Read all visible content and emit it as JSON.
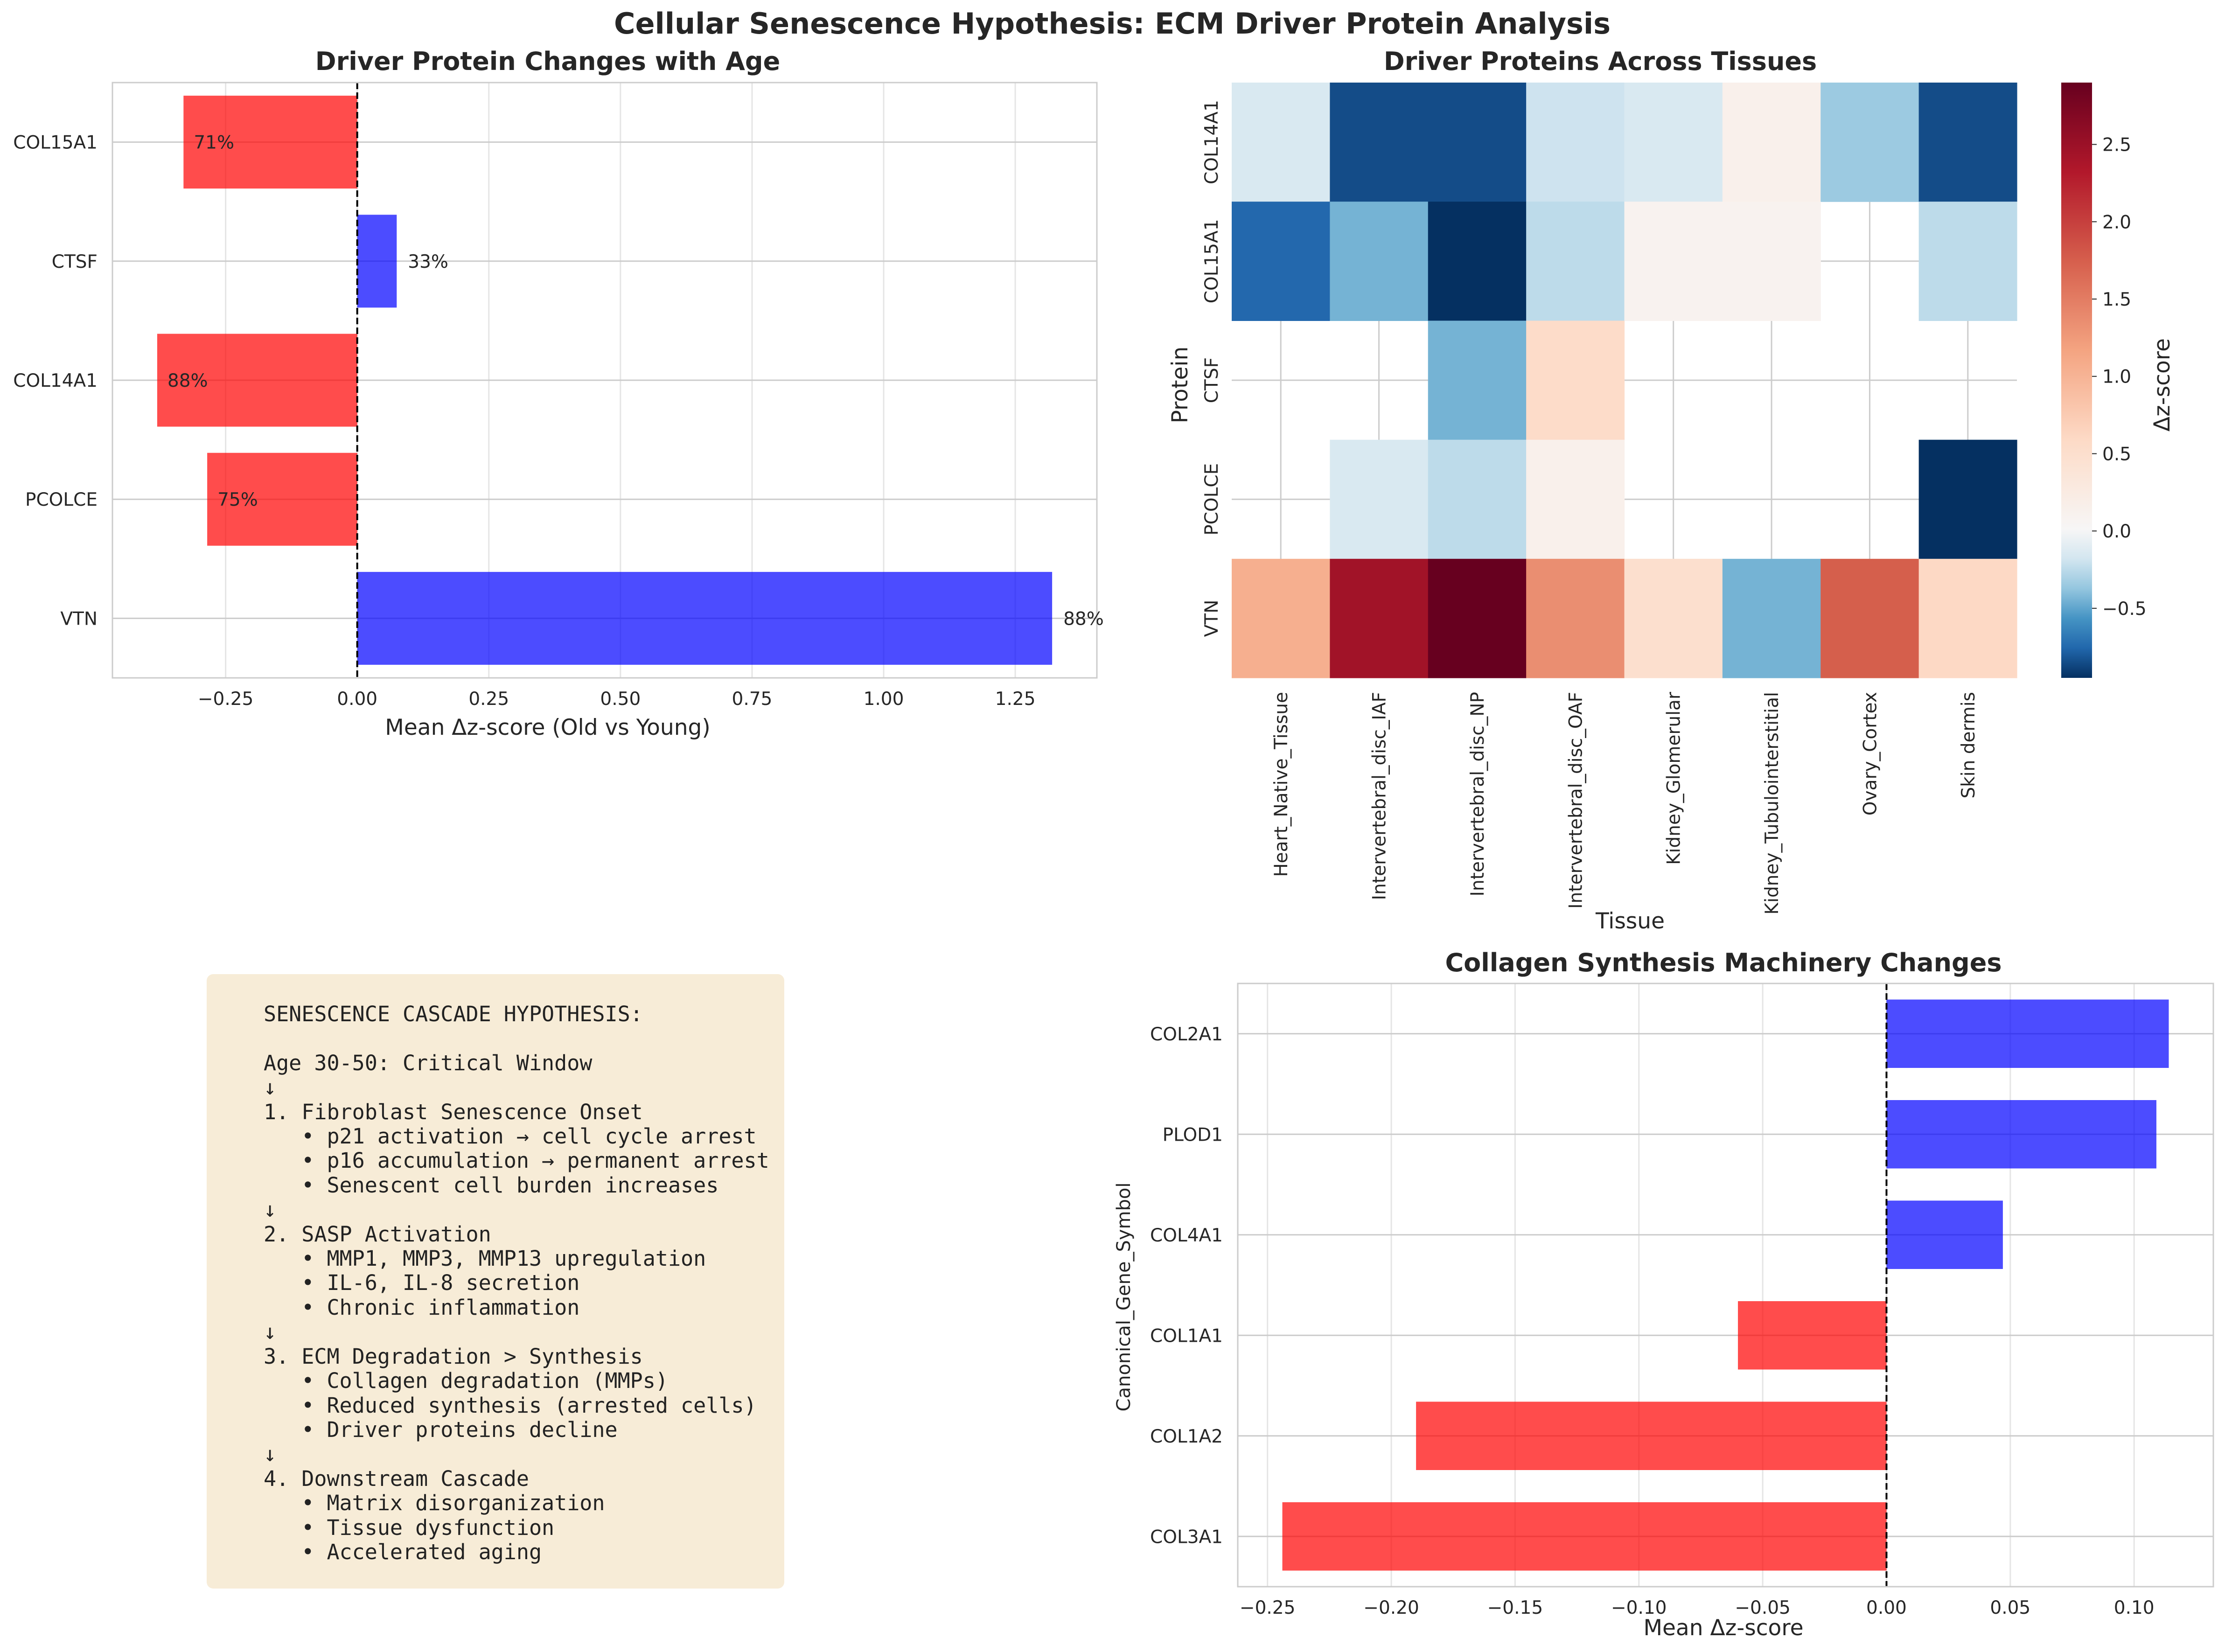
{
  "suptitle": "Cellular Senescence Hypothesis: ECM Driver Protein Analysis",
  "colors": {
    "increase": "#0000ff",
    "decrease": "#ff0000",
    "grid": "#e5e5e5",
    "text": "#262626",
    "text_box_bg": "#f7ecd7"
  },
  "chart_data": [
    {
      "type": "bar",
      "orientation": "horizontal",
      "title": "Driver Protein Changes with Age",
      "xlabel": "Mean Δz-score (Old vs Young)",
      "ylabel": "",
      "categories": [
        "COL15A1",
        "CTSF",
        "COL14A1",
        "PCOLCE",
        "VTN"
      ],
      "values": [
        -0.33,
        0.075,
        -0.38,
        -0.285,
        1.32
      ],
      "data_labels": [
        "71%",
        "33%",
        "88%",
        "75%",
        "88%"
      ],
      "xlim": [
        -0.465,
        1.405
      ],
      "xticks": [
        -0.25,
        0.0,
        0.25,
        0.5,
        0.75,
        1.0,
        1.25
      ],
      "xtick_labels": [
        "−0.25",
        "0.00",
        "0.25",
        "0.50",
        "0.75",
        "1.00",
        "1.25"
      ],
      "grid": true
    },
    {
      "type": "heatmap",
      "title": "Driver Proteins Across Tissues",
      "xlabel": "Tissue",
      "ylabel": "Protein",
      "x_categories": [
        "Heart_Native_Tissue",
        "Intervertebral_disc_IAF",
        "Intervertebral_disc_NP",
        "Intervertebral_disc_OAF",
        "Kidney_Glomerular",
        "Kidney_Tubulointerstitial",
        "Ovary_Cortex",
        "Skin dermis"
      ],
      "y_categories": [
        "COL14A1",
        "COL15A1",
        "CTSF",
        "PCOLCE",
        "VTN"
      ],
      "values": [
        [
          -0.15,
          -0.85,
          -0.85,
          -0.2,
          -0.15,
          0.15,
          -0.35,
          -0.85
        ],
        [
          -0.75,
          -0.45,
          -0.95,
          -0.25,
          0.1,
          0.1,
          null,
          -0.25
        ],
        [
          null,
          null,
          -0.45,
          0.55,
          null,
          null,
          null,
          null
        ],
        [
          null,
          -0.15,
          -0.25,
          0.15,
          null,
          null,
          null,
          -0.95
        ],
        [
          1.05,
          2.45,
          2.9,
          1.35,
          0.5,
          -0.45,
          1.75,
          0.6
        ]
      ],
      "colorbar_label": "Δz-score",
      "colorbar_range": [
        -0.95,
        2.9
      ],
      "colorbar_ticks": [
        -0.5,
        0.0,
        0.5,
        1.0,
        1.5,
        2.0,
        2.5
      ],
      "colorbar_tick_labels": [
        "−0.5",
        "0.0",
        "0.5",
        "1.0",
        "1.5",
        "2.0",
        "2.5"
      ],
      "colormap": "RdBu_r centered at 0"
    },
    {
      "type": "bar",
      "orientation": "horizontal",
      "title": "Collagen Synthesis Machinery Changes",
      "xlabel": "Mean Δz-score",
      "ylabel": "Canonical_Gene_Symbol",
      "categories": [
        "COL2A1",
        "PLOD1",
        "COL4A1",
        "COL1A1",
        "COL1A2",
        "COL3A1"
      ],
      "values": [
        0.114,
        0.109,
        0.047,
        -0.06,
        -0.19,
        -0.244
      ],
      "xlim": [
        -0.262,
        0.132
      ],
      "xticks": [
        -0.25,
        -0.2,
        -0.15,
        -0.1,
        -0.05,
        0.0,
        0.05,
        0.1
      ],
      "xtick_labels": [
        "−0.25",
        "−0.20",
        "−0.15",
        "−0.10",
        "−0.05",
        "0.00",
        "0.05",
        "0.10"
      ],
      "grid": true
    }
  ],
  "hypothesis_text": "SENESCENCE CASCADE HYPOTHESIS:\n\nAge 30-50: Critical Window\n↓\n1. Fibroblast Senescence Onset\n   • p21 activation → cell cycle arrest\n   • p16 accumulation → permanent arrest\n   • Senescent cell burden increases\n↓\n2. SASP Activation\n   • MMP1, MMP3, MMP13 upregulation\n   • IL-6, IL-8 secretion\n   • Chronic inflammation\n↓\n3. ECM Degradation > Synthesis\n   • Collagen degradation (MMPs)\n   • Reduced synthesis (arrested cells)\n   • Driver proteins decline\n↓\n4. Downstream Cascade\n   • Matrix disorganization\n   • Tissue dysfunction\n   • Accelerated aging"
}
